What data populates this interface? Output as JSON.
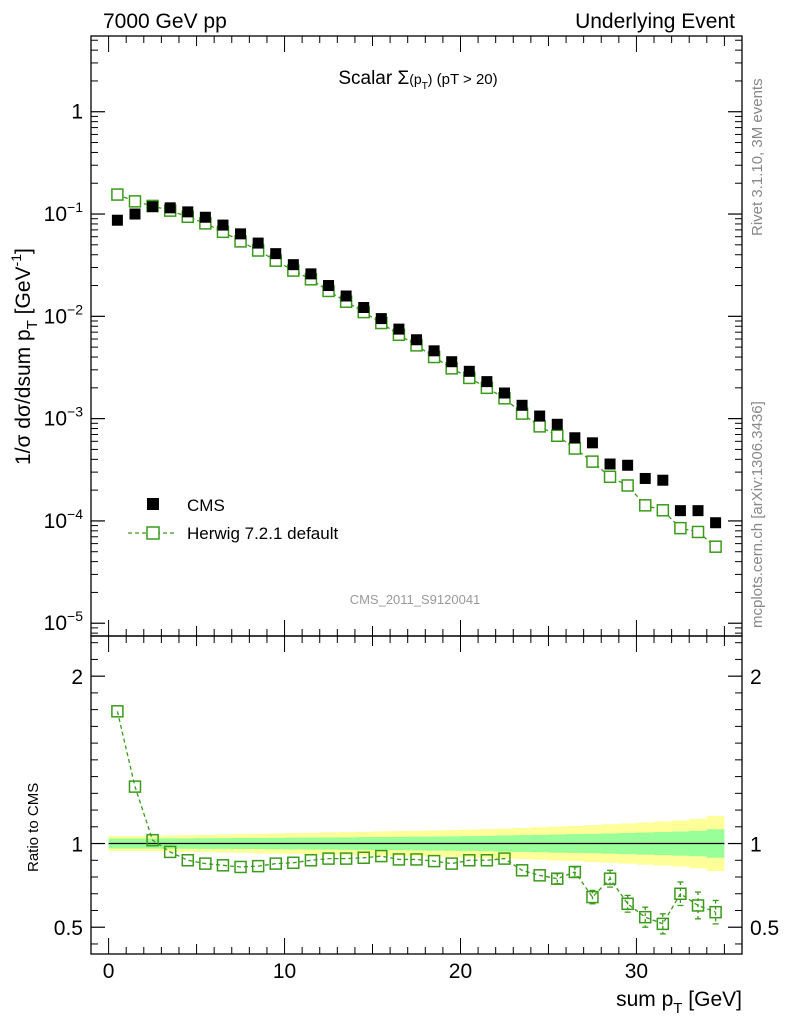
{
  "header": {
    "left": "7000 GeV pp",
    "right": "Underlying Event"
  },
  "side_labels": {
    "rivet": "Rivet 3.1.10,  3M events",
    "paper": "mcplots.cern.ch [arXiv:1306.3436]"
  },
  "watermark": "CMS_2011_S9120041",
  "colors": {
    "cms": "#000000",
    "herwig": "#3a9a1a",
    "band_outer": "#ffff99",
    "band_inner": "#99ff99"
  },
  "chart_data": [
    {
      "type": "scatter",
      "title_main": "Scalar ",
      "title_sigma": "Σ",
      "title_sub": "(p",
      "title_sub_t": "T",
      "title_sub_close": ")",
      "title_cut": " (pT > 20)",
      "ylabel": "1/σ dσ/dsum p",
      "ylabel_sub": "T",
      "ylabel_unit": " [GeV",
      "ylabel_unit_sup": "-1",
      "ylabel_unit_close": "]",
      "yscale": "log",
      "ylim": [
        7.5e-06,
        5.5
      ],
      "xlim": [
        -1,
        36
      ],
      "yticks": [
        {
          "v": 1,
          "label": "1",
          "exp": ""
        },
        {
          "v": 0.1,
          "label": "10",
          "exp": "−1"
        },
        {
          "v": 0.01,
          "label": "10",
          "exp": "−2"
        },
        {
          "v": 0.001,
          "label": "10",
          "exp": "−3"
        },
        {
          "v": 0.0001,
          "label": "10",
          "exp": "−4"
        },
        {
          "v": 1e-05,
          "label": "10",
          "exp": "−5"
        }
      ],
      "legend": [
        {
          "name": "CMS",
          "marker": "filled-square"
        },
        {
          "name": "Herwig 7.2.1 default",
          "marker": "open-square-dashed"
        }
      ],
      "legend_position": "bottom-left",
      "x": [
        0.5,
        1.5,
        2.5,
        3.5,
        4.5,
        5.5,
        6.5,
        7.5,
        8.5,
        9.5,
        10.5,
        11.5,
        12.5,
        13.5,
        14.5,
        15.5,
        16.5,
        17.5,
        18.5,
        19.5,
        20.5,
        21.5,
        22.5,
        23.5,
        24.5,
        25.5,
        26.5,
        27.5,
        28.5,
        29.5,
        30.5,
        31.5,
        32.5,
        33.5,
        34.5
      ],
      "series": [
        {
          "name": "CMS",
          "values": [
            0.087,
            0.1,
            0.118,
            0.115,
            0.105,
            0.093,
            0.078,
            0.064,
            0.052,
            0.041,
            0.032,
            0.026,
            0.02,
            0.0158,
            0.0122,
            0.0095,
            0.0075,
            0.0059,
            0.0046,
            0.0036,
            0.0029,
            0.0023,
            0.00178,
            0.00135,
            0.00106,
            0.00088,
            0.00065,
            0.00058,
            0.00036,
            0.00035,
            0.00026,
            0.00025,
            0.000126,
            0.000126,
            9.6e-05
          ]
        },
        {
          "name": "Herwig 7.2.1 default",
          "values": [
            0.155,
            0.133,
            0.12,
            0.108,
            0.094,
            0.081,
            0.067,
            0.054,
            0.044,
            0.035,
            0.028,
            0.023,
            0.0177,
            0.0139,
            0.011,
            0.0086,
            0.0066,
            0.0052,
            0.004,
            0.0031,
            0.0025,
            0.002,
            0.00158,
            0.00112,
            0.00084,
            0.00068,
            0.00051,
            0.00038,
            0.00027,
            0.000222,
            0.000142,
            0.000127,
            8.5e-05,
            7.8e-05,
            5.6e-05
          ]
        }
      ]
    },
    {
      "type": "line",
      "ylabel": "Ratio to CMS",
      "xlabel": "sum p",
      "xlabel_sub": "T",
      "xlabel_unit": " [GeV]",
      "ylim": [
        0.34,
        2.24
      ],
      "xlim": [
        -1,
        36
      ],
      "xticks": [
        0,
        10,
        20,
        30
      ],
      "yticks": [
        {
          "v": 2,
          "label": "2"
        },
        {
          "v": 1,
          "label": "1"
        },
        {
          "v": 0.5,
          "label": "0.5"
        }
      ],
      "x": [
        0.5,
        1.5,
        2.5,
        3.5,
        4.5,
        5.5,
        6.5,
        7.5,
        8.5,
        9.5,
        10.5,
        11.5,
        12.5,
        13.5,
        14.5,
        15.5,
        16.5,
        17.5,
        18.5,
        19.5,
        20.5,
        21.5,
        22.5,
        23.5,
        24.5,
        25.5,
        26.5,
        27.5,
        28.5,
        29.5,
        30.5,
        31.5,
        32.5,
        33.5,
        34.5
      ],
      "series": [
        {
          "name": "Herwig 7.2.1 default",
          "values": [
            1.79,
            1.34,
            1.02,
            0.95,
            0.9,
            0.88,
            0.87,
            0.86,
            0.865,
            0.88,
            0.885,
            0.9,
            0.91,
            0.91,
            0.915,
            0.925,
            0.905,
            0.905,
            0.895,
            0.88,
            0.9,
            0.9,
            0.91,
            0.84,
            0.81,
            0.79,
            0.83,
            0.68,
            0.79,
            0.64,
            0.56,
            0.52,
            0.7,
            0.63,
            0.59
          ],
          "errors": [
            0.02,
            0.02,
            0.01,
            0.01,
            0.01,
            0.01,
            0.01,
            0.01,
            0.01,
            0.01,
            0.01,
            0.01,
            0.01,
            0.01,
            0.01,
            0.01,
            0.01,
            0.01,
            0.01,
            0.01,
            0.01,
            0.01,
            0.01,
            0.02,
            0.02,
            0.03,
            0.03,
            0.04,
            0.05,
            0.05,
            0.06,
            0.06,
            0.07,
            0.08,
            0.07
          ]
        }
      ],
      "band_outer_half": [
        0.045,
        0.045,
        0.046,
        0.048,
        0.05,
        0.052,
        0.054,
        0.056,
        0.058,
        0.06,
        0.062,
        0.064,
        0.066,
        0.068,
        0.07,
        0.072,
        0.074,
        0.076,
        0.078,
        0.08,
        0.083,
        0.086,
        0.089,
        0.093,
        0.097,
        0.101,
        0.105,
        0.11,
        0.115,
        0.12,
        0.126,
        0.132,
        0.138,
        0.148,
        0.165
      ],
      "band_inner_half": [
        0.03,
        0.03,
        0.03,
        0.031,
        0.031,
        0.032,
        0.032,
        0.033,
        0.033,
        0.034,
        0.035,
        0.036,
        0.036,
        0.037,
        0.038,
        0.039,
        0.04,
        0.041,
        0.042,
        0.043,
        0.044,
        0.046,
        0.048,
        0.05,
        0.052,
        0.054,
        0.056,
        0.058,
        0.06,
        0.063,
        0.066,
        0.069,
        0.072,
        0.076,
        0.085
      ],
      "reference_line": 1
    }
  ]
}
